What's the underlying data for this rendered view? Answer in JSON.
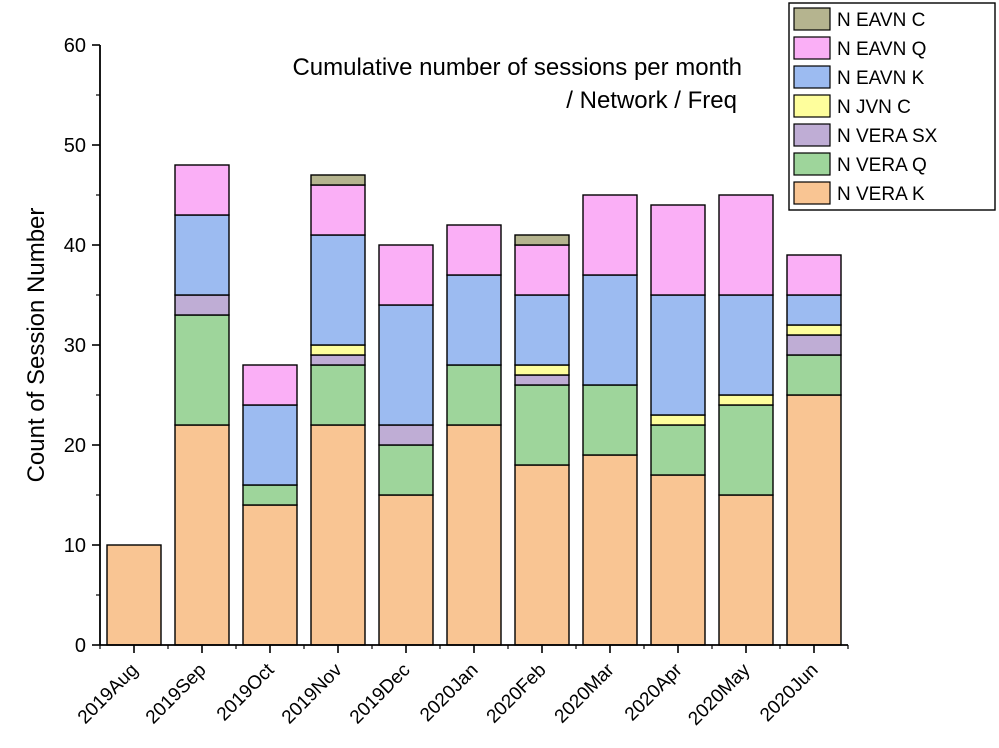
{
  "chart_data": {
    "type": "bar",
    "stacked": true,
    "title_lines": [
      "Cumulative number of sessions per month",
      "/ Network / Freq"
    ],
    "ylabel": "Count of Session Number",
    "xlabel": "",
    "ylim": [
      0,
      60
    ],
    "yticks": [
      "0",
      "10",
      "20",
      "30",
      "40",
      "50",
      "60"
    ],
    "categories": [
      "2019Aug",
      "2019Sep",
      "2019Oct",
      "2019Nov",
      "2019Dec",
      "2020Jan",
      "2020Feb",
      "2020Mar",
      "2020Apr",
      "2020May",
      "2020Jun"
    ],
    "legend_position": "top-right",
    "grid": false,
    "series": [
      {
        "name": "N VERA K",
        "color": "#f9c593",
        "values": [
          10,
          22,
          14,
          22,
          15,
          22,
          18,
          19,
          17,
          15,
          25
        ]
      },
      {
        "name": "N VERA Q",
        "color": "#9ed59b",
        "values": [
          0,
          11,
          2,
          6,
          5,
          6,
          8,
          7,
          5,
          9,
          4
        ]
      },
      {
        "name": "N VERA SX",
        "color": "#bfadd5",
        "values": [
          0,
          2,
          0,
          1,
          2,
          0,
          1,
          0,
          0,
          0,
          2
        ]
      },
      {
        "name": "N JVN C",
        "color": "#fefe9c",
        "values": [
          0,
          0,
          0,
          1,
          0,
          0,
          1,
          0,
          1,
          1,
          1
        ]
      },
      {
        "name": "N EAVN K",
        "color": "#9cbbf1",
        "values": [
          0,
          8,
          8,
          11,
          12,
          9,
          7,
          11,
          12,
          10,
          3
        ]
      },
      {
        "name": "N EAVN Q",
        "color": "#faaff6",
        "values": [
          0,
          5,
          4,
          5,
          6,
          5,
          5,
          8,
          9,
          10,
          4
        ]
      },
      {
        "name": "N EAVN C",
        "color": "#b5b48f",
        "values": [
          0,
          0,
          0,
          1,
          0,
          0,
          1,
          0,
          0,
          0,
          0
        ]
      }
    ]
  }
}
